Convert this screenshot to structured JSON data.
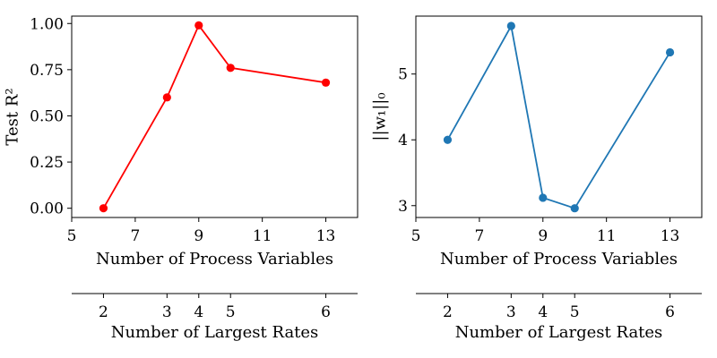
{
  "chart_data": [
    {
      "type": "line",
      "color": "#ff0000",
      "xlabel": "Number of Process Variables",
      "ylabel": "Test R²",
      "xlim": [
        5,
        14
      ],
      "ylim": [
        -0.05,
        1.04
      ],
      "xticks": [
        5,
        7,
        9,
        11,
        13
      ],
      "xtick_labels": [
        "5",
        "7",
        "9",
        "11",
        "13"
      ],
      "yticks": [
        0.0,
        0.25,
        0.5,
        0.75,
        1.0
      ],
      "ytick_labels": [
        "0.00",
        "0.25",
        "0.50",
        "0.75",
        "1.00"
      ],
      "x": [
        6,
        8,
        9,
        10,
        13
      ],
      "y": [
        0.0,
        0.6,
        0.99,
        0.76,
        0.68
      ],
      "secondary_xaxis": {
        "label": "Number of Largest Rates",
        "ticks_at_x": [
          6,
          8,
          9,
          10,
          13
        ],
        "tick_labels": [
          "2",
          "3",
          "4",
          "5",
          "6"
        ]
      },
      "grid": false
    },
    {
      "type": "line",
      "color": "#1f77b4",
      "xlabel": "Number of Process Variables",
      "ylabel": "||w₁||₀",
      "xlim": [
        5,
        14
      ],
      "ylim": [
        2.82,
        5.88
      ],
      "xticks": [
        5,
        7,
        9,
        11,
        13
      ],
      "xtick_labels": [
        "5",
        "7",
        "9",
        "11",
        "13"
      ],
      "yticks": [
        3,
        4,
        5
      ],
      "ytick_labels": [
        "3",
        "4",
        "5"
      ],
      "x": [
        6,
        8,
        9,
        10,
        13
      ],
      "y": [
        4.0,
        5.73,
        3.12,
        2.96,
        5.33
      ],
      "secondary_xaxis": {
        "label": "Number of Largest Rates",
        "ticks_at_x": [
          6,
          8,
          9,
          10,
          13
        ],
        "tick_labels": [
          "2",
          "3",
          "4",
          "5",
          "6"
        ]
      },
      "grid": false
    }
  ]
}
